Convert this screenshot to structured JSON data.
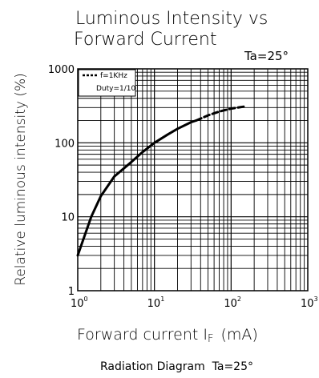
{
  "chart_data": {
    "type": "line",
    "title_lines": [
      "Luminous Intensity vs",
      "Forward Current"
    ],
    "title_condition": "Ta=25°",
    "xlabel": "Forward current I",
    "xlabel_sub": "F",
    "xlabel_unit": "(mA)",
    "ylabel": "Relative luminous intensity (%)",
    "caption": "Radiation Diagram  Ta=25°",
    "x_scale": "log",
    "y_scale": "log",
    "xlim": [
      1,
      1000
    ],
    "ylim": [
      1,
      1000
    ],
    "x_ticks": [
      {
        "value": 1,
        "base": "10",
        "exp": "0"
      },
      {
        "value": 10,
        "base": "10",
        "exp": "1"
      },
      {
        "value": 100,
        "base": "10",
        "exp": "2"
      },
      {
        "value": 1000,
        "base": "10",
        "exp": "3"
      }
    ],
    "y_ticks": [
      {
        "value": 1,
        "label": "1"
      },
      {
        "value": 10,
        "label": "10"
      },
      {
        "value": 100,
        "label": "100"
      },
      {
        "value": 1000,
        "label": "1000"
      }
    ],
    "grid": true,
    "legend": {
      "position": "top-left",
      "entries": [
        {
          "label": "f=1KHz",
          "style": "dashed"
        },
        {
          "label": "Duty=1/10",
          "style": "none"
        }
      ]
    },
    "series": [
      {
        "style": "solid",
        "x": [
          1,
          1.5,
          2,
          3,
          5,
          7,
          10,
          15,
          20,
          30,
          35
        ],
        "y": [
          3,
          10,
          19,
          35,
          55,
          75,
          100,
          130,
          155,
          190,
          200
        ]
      },
      {
        "label": "f=1KHz",
        "style": "dashed",
        "x": [
          35,
          50,
          70,
          100,
          150
        ],
        "y": [
          200,
          235,
          265,
          290,
          310
        ]
      }
    ],
    "colors": {
      "line": "#000000",
      "grid": "#000000",
      "background": "#ffffff"
    }
  }
}
